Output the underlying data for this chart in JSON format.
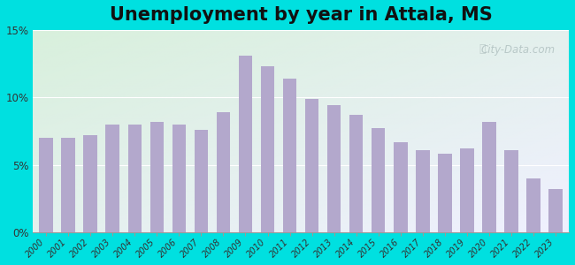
{
  "title": "Unemployment by year in Attala, MS",
  "years": [
    2000,
    2001,
    2002,
    2003,
    2004,
    2005,
    2006,
    2007,
    2008,
    2009,
    2010,
    2011,
    2012,
    2013,
    2014,
    2015,
    2016,
    2017,
    2018,
    2019,
    2020,
    2021,
    2022,
    2023
  ],
  "values": [
    7.0,
    7.0,
    7.2,
    8.0,
    8.0,
    8.2,
    8.0,
    7.6,
    8.9,
    13.1,
    12.3,
    11.4,
    9.9,
    9.4,
    8.7,
    7.7,
    6.7,
    6.1,
    5.8,
    6.2,
    8.2,
    6.1,
    4.0,
    3.2
  ],
  "bar_color": "#b3a8cc",
  "background_outer": "#00e0e0",
  "background_inner_top_left": "#d8f0dc",
  "background_inner_bottom_right": "#f0f0ff",
  "ytick_labels": [
    "0%",
    "5%",
    "10%",
    "15%"
  ],
  "ytick_values": [
    0,
    5,
    10,
    15
  ],
  "ylim": [
    0,
    15
  ],
  "title_fontsize": 15,
  "watermark": "City-Data.com"
}
